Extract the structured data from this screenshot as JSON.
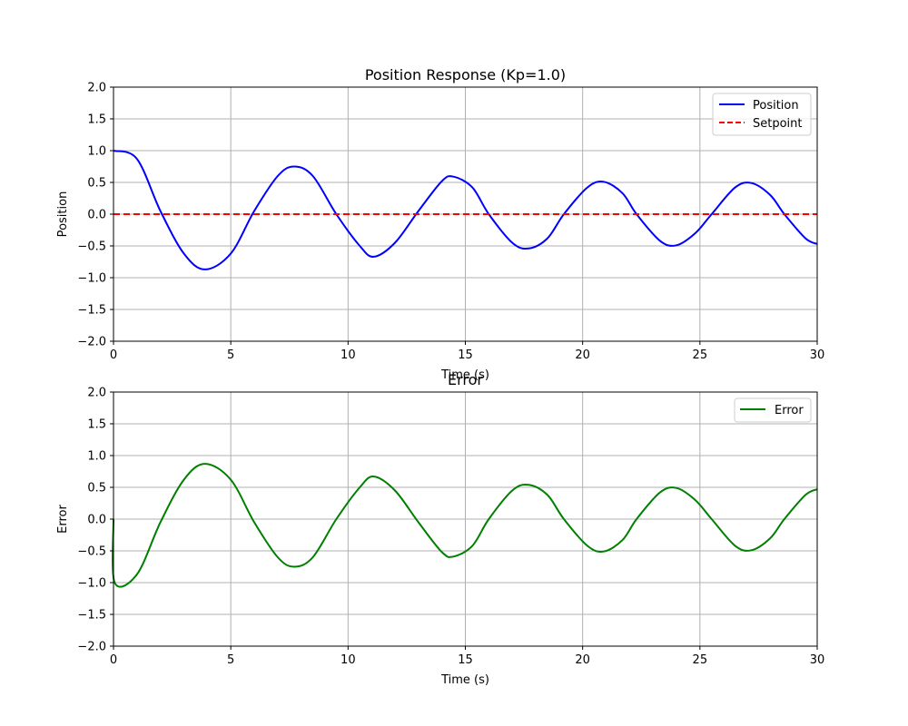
{
  "chart_data": [
    {
      "type": "line",
      "title": "Position Response (Kp=1.0)",
      "xlabel": "Time (s)",
      "ylabel": "Position",
      "xlim": [
        0,
        30
      ],
      "ylim": [
        -2.0,
        2.0
      ],
      "xticks": [
        "0",
        "5",
        "10",
        "15",
        "20",
        "25",
        "30"
      ],
      "yticks": [
        "2.0",
        "1.5",
        "1.0",
        "0.5",
        "0.0",
        "−0.5",
        "−1.0",
        "−1.5",
        "−2.0"
      ],
      "grid": true,
      "legend_position": "top-right",
      "series": [
        {
          "name": "Position",
          "color": "#0000ff",
          "style": "solid",
          "points": [
            [
              0,
              1.0
            ],
            [
              1.0,
              0.87
            ],
            [
              2.0,
              0.05
            ],
            [
              3.0,
              -0.62
            ],
            [
              3.9,
              -0.87
            ],
            [
              5.0,
              -0.62
            ],
            [
              6.0,
              0.05
            ],
            [
              7.0,
              0.6
            ],
            [
              7.7,
              0.75
            ],
            [
              8.5,
              0.6
            ],
            [
              9.5,
              0.0
            ],
            [
              10.5,
              -0.5
            ],
            [
              11.1,
              -0.67
            ],
            [
              12.0,
              -0.45
            ],
            [
              13.0,
              0.05
            ],
            [
              14.0,
              0.52
            ],
            [
              14.5,
              0.59
            ],
            [
              15.3,
              0.42
            ],
            [
              16.0,
              0.0
            ],
            [
              17.0,
              -0.45
            ],
            [
              17.7,
              -0.54
            ],
            [
              18.5,
              -0.38
            ],
            [
              19.2,
              0.0
            ],
            [
              20.2,
              0.42
            ],
            [
              20.9,
              0.51
            ],
            [
              21.7,
              0.33
            ],
            [
              22.3,
              0.0
            ],
            [
              23.3,
              -0.42
            ],
            [
              24.0,
              -0.49
            ],
            [
              24.8,
              -0.3
            ],
            [
              25.5,
              0.0
            ],
            [
              26.5,
              0.42
            ],
            [
              27.2,
              0.49
            ],
            [
              28.0,
              0.3
            ],
            [
              28.6,
              0.0
            ],
            [
              29.5,
              -0.38
            ],
            [
              30,
              -0.47
            ]
          ]
        },
        {
          "name": "Setpoint",
          "color": "#ff0000",
          "style": "dashed",
          "points": [
            [
              0,
              0.0
            ],
            [
              30,
              0.0
            ]
          ]
        }
      ]
    },
    {
      "type": "line",
      "title": "Error",
      "xlabel": "Time (s)",
      "ylabel": "Error",
      "xlim": [
        0,
        30
      ],
      "ylim": [
        -2.0,
        2.0
      ],
      "xticks": [
        "0",
        "5",
        "10",
        "15",
        "20",
        "25",
        "30"
      ],
      "yticks": [
        "2.0",
        "1.5",
        "1.0",
        "0.5",
        "0.0",
        "−0.5",
        "−1.0",
        "−1.5",
        "−2.0"
      ],
      "grid": true,
      "legend_position": "top-right",
      "series": [
        {
          "name": "Error",
          "color": "#008000",
          "style": "solid",
          "points": [
            [
              0,
              0.0
            ],
            [
              0.05,
              -1.0
            ],
            [
              1.0,
              -0.87
            ],
            [
              2.0,
              -0.05
            ],
            [
              3.0,
              0.62
            ],
            [
              3.9,
              0.87
            ],
            [
              5.0,
              0.62
            ],
            [
              6.0,
              -0.05
            ],
            [
              7.0,
              -0.6
            ],
            [
              7.7,
              -0.75
            ],
            [
              8.5,
              -0.6
            ],
            [
              9.5,
              0.0
            ],
            [
              10.5,
              0.5
            ],
            [
              11.1,
              0.67
            ],
            [
              12.0,
              0.45
            ],
            [
              13.0,
              -0.05
            ],
            [
              14.0,
              -0.52
            ],
            [
              14.5,
              -0.59
            ],
            [
              15.3,
              -0.42
            ],
            [
              16.0,
              0.0
            ],
            [
              17.0,
              0.45
            ],
            [
              17.7,
              0.54
            ],
            [
              18.5,
              0.38
            ],
            [
              19.2,
              0.0
            ],
            [
              20.2,
              -0.42
            ],
            [
              20.9,
              -0.51
            ],
            [
              21.7,
              -0.33
            ],
            [
              22.3,
              0.0
            ],
            [
              23.3,
              0.42
            ],
            [
              24.0,
              0.49
            ],
            [
              24.8,
              0.3
            ],
            [
              25.5,
              0.0
            ],
            [
              26.5,
              -0.42
            ],
            [
              27.2,
              -0.49
            ],
            [
              28.0,
              -0.3
            ],
            [
              28.6,
              0.0
            ],
            [
              29.5,
              0.38
            ],
            [
              30,
              0.47
            ]
          ]
        }
      ]
    }
  ]
}
